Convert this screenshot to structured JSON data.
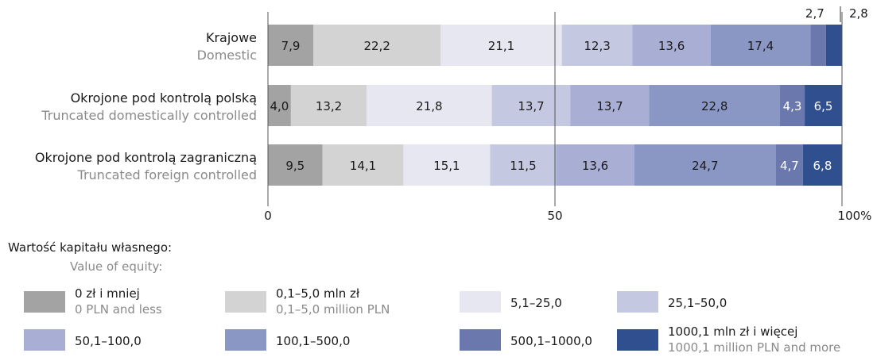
{
  "chart_data": {
    "type": "bar",
    "orientation": "horizontal",
    "stacked": true,
    "categories": [
      {
        "label_pl": "Krajowe",
        "label_en": "Domestic"
      },
      {
        "label_pl": "Okrojone pod kontrolą polską",
        "label_en": "Truncated domestically controlled"
      },
      {
        "label_pl": "Okrojone pod kontrolą zagraniczną",
        "label_en": "Truncated foreign controlled"
      }
    ],
    "series": [
      {
        "name": "0 zł i mniej",
        "name_en": "0 PLN and less",
        "color": "#a3a3a3",
        "values": [
          7.9,
          4.0,
          9.5
        ],
        "labels": [
          "7,9",
          "4,0",
          "9,5"
        ]
      },
      {
        "name": "0,1–5,0 mln zł",
        "name_en": "0,1–5,0 million PLN",
        "color": "#d3d3d3",
        "values": [
          22.2,
          13.2,
          14.1
        ],
        "labels": [
          "22,2",
          "13,2",
          "14,1"
        ]
      },
      {
        "name": "5,1–25,0",
        "name_en": "",
        "color": "#e6e7f1",
        "values": [
          21.1,
          21.8,
          15.1
        ],
        "labels": [
          "21,1",
          "21,8",
          "15,1"
        ]
      },
      {
        "name": "25,1–50,0",
        "name_en": "",
        "color": "#c4c8e0",
        "values": [
          12.3,
          13.7,
          11.5
        ],
        "labels": [
          "12,3",
          "13,7",
          "11,5"
        ]
      },
      {
        "name": "50,1–100,0",
        "name_en": "",
        "color": "#a9aed4",
        "values": [
          13.6,
          13.7,
          13.6
        ],
        "labels": [
          "13,6",
          "13,7",
          "13,6"
        ]
      },
      {
        "name": "100,1–500,0",
        "name_en": "",
        "color": "#8a96c4",
        "values": [
          17.4,
          22.8,
          24.7
        ],
        "labels": [
          "17,4",
          "22,8",
          "24,7"
        ]
      },
      {
        "name": "500,1–1000,0",
        "name_en": "",
        "color": "#6b78ad",
        "values": [
          2.7,
          4.3,
          4.7
        ],
        "labels": [
          "2,7",
          "4,3",
          "4,7"
        ]
      },
      {
        "name": "1000,1 mln zł i więcej",
        "name_en": "1000,1 million PLN and more",
        "color": "#2f4f8f",
        "values": [
          2.8,
          6.5,
          6.8
        ],
        "labels": [
          "2,8",
          "6,5",
          "6,8"
        ]
      }
    ],
    "xticks": [
      "0",
      "50",
      "100%"
    ],
    "xlim": [
      0,
      100
    ],
    "legend_title_pl": "Wartość kapitału własnego:",
    "legend_title_en": "Value of equity:",
    "legend_position": "bottom"
  }
}
